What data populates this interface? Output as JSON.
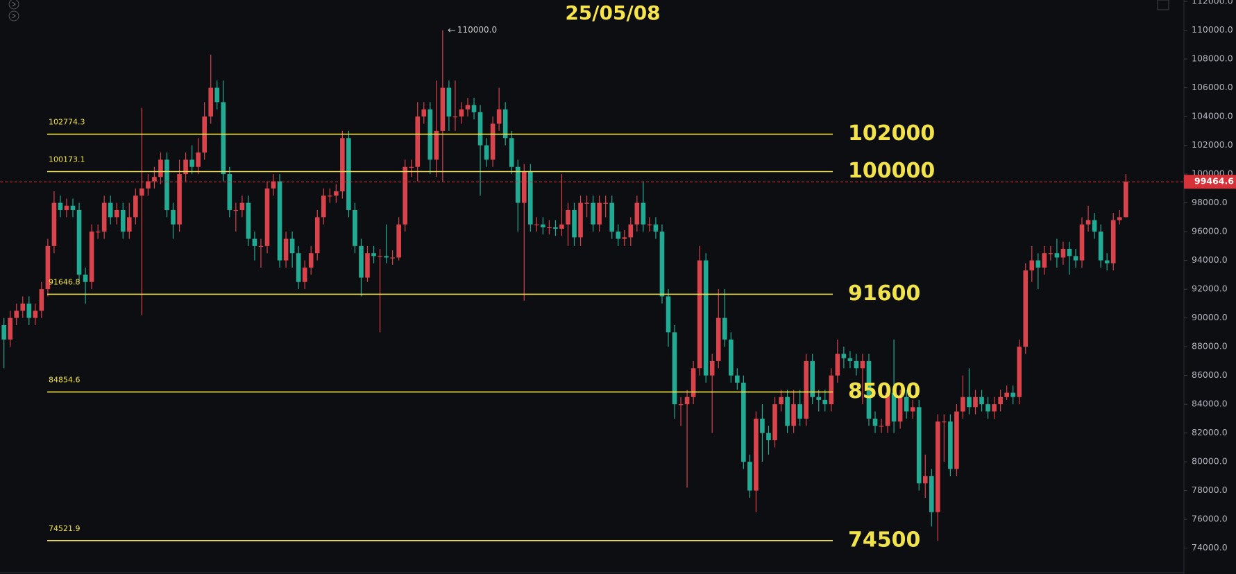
{
  "chart_data": {
    "type": "candlestick",
    "title": "25/05/08",
    "up_color": "#d9434b",
    "down_color": "#22ab94",
    "level_color": "#f2e34a",
    "ylim": [
      72200,
      112100
    ],
    "yticks": [
      {
        "value": 74000,
        "label": "74000.0"
      },
      {
        "value": 76000,
        "label": "76000.0"
      },
      {
        "value": 78000,
        "label": "78000.0"
      },
      {
        "value": 80000,
        "label": "80000.0"
      },
      {
        "value": 82000,
        "label": "82000.0"
      },
      {
        "value": 84000,
        "label": "84000.0"
      },
      {
        "value": 86000,
        "label": "86000.0"
      },
      {
        "value": 88000,
        "label": "88000.0"
      },
      {
        "value": 90000,
        "label": "90000.0"
      },
      {
        "value": 92000,
        "label": "92000.0"
      },
      {
        "value": 94000,
        "label": "94000.0"
      },
      {
        "value": 96000,
        "label": "96000.0"
      },
      {
        "value": 98000,
        "label": "98000.0"
      },
      {
        "value": 100000,
        "label": "100000.0"
      },
      {
        "value": 102000,
        "label": "102000.0"
      },
      {
        "value": 104000,
        "label": "104000.0"
      },
      {
        "value": 106000,
        "label": "106000.0"
      },
      {
        "value": 108000,
        "label": "108000.0"
      },
      {
        "value": 110000,
        "label": "110000.0"
      },
      {
        "value": 112000,
        "label": "112000.0"
      }
    ],
    "levels": [
      {
        "value": 102774.3,
        "target": 102000
      },
      {
        "value": 100173.1,
        "target": 100000
      },
      {
        "value": 91646.8,
        "target": 91600
      },
      {
        "value": 84854.6,
        "target": 85000
      },
      {
        "value": 74521.9,
        "target": 74500
      }
    ],
    "last_price": 99464.6,
    "high_marker": {
      "value": 110000,
      "label": "110000.0"
    },
    "open": [
      89500,
      88500,
      90000,
      90500,
      91000,
      90000,
      90500,
      92000,
      95000,
      98000,
      97500,
      97800,
      97500,
      93000,
      92500,
      96000,
      96000,
      98000,
      97000,
      97500,
      96000,
      97000,
      98500,
      99000,
      99500,
      99800,
      101000,
      97500,
      96500,
      100000,
      101000,
      100500,
      101500,
      104000,
      106000,
      105000,
      100000,
      97500,
      97500,
      98000,
      95500,
      95000,
      95000,
      99000,
      99500,
      94000,
      95500,
      94500,
      92500,
      93500,
      94500,
      97000,
      98500,
      98500,
      98800,
      102500,
      97500,
      95000,
      92800,
      94500,
      94300,
      94300,
      94200,
      94200,
      96500,
      100500,
      100500,
      104000,
      104500,
      101000,
      103000,
      106000,
      104000,
      104000,
      104500,
      104800,
      104300,
      102000,
      101000,
      103500,
      104500,
      102500,
      100500,
      98000,
      100200,
      96500,
      96500,
      96300,
      96300,
      96200,
      96500,
      97500,
      95600,
      98000,
      98000,
      96500,
      98000,
      98000,
      96000,
      95500,
      95600,
      96500,
      98000,
      96500,
      96500,
      96000,
      91500,
      89000,
      84000,
      84000,
      84500,
      86500,
      94000,
      86000,
      87000,
      90000,
      88500,
      86000,
      85500,
      80000,
      78000,
      83000,
      82000,
      81500,
      84000,
      84500,
      82500,
      84000,
      83000,
      87000,
      84500,
      84300,
      84000,
      86000,
      87500,
      87200,
      87000,
      86500,
      87000,
      83000,
      82500,
      82500,
      84800,
      82800,
      84500,
      83500,
      83800,
      78500,
      79000,
      76500,
      82800,
      82800,
      79500,
      83500,
      84500,
      83800,
      84500,
      84000,
      83500,
      84000,
      84500,
      84800,
      84500,
      88000,
      93300,
      94000,
      93500,
      94500,
      94500,
      94200,
      94800,
      94300,
      94000,
      96500,
      96800,
      96000,
      94000,
      93800,
      96800,
      97000
    ],
    "high": [
      90000,
      90500,
      91000,
      91500,
      91500,
      91000,
      92500,
      95500,
      98800,
      98500,
      98300,
      98300,
      98000,
      93500,
      96500,
      96500,
      98500,
      98500,
      98000,
      98000,
      98000,
      99000,
      104600,
      100000,
      100500,
      101500,
      101500,
      98000,
      101000,
      101500,
      102000,
      102500,
      105000,
      108300,
      106500,
      106500,
      100500,
      98000,
      98500,
      98500,
      96000,
      95500,
      99500,
      100000,
      100000,
      96000,
      96000,
      95000,
      94000,
      95000,
      97500,
      99000,
      99000,
      99300,
      103000,
      103000,
      98000,
      95500,
      95000,
      95000,
      94800,
      96500,
      94700,
      97000,
      101000,
      101000,
      105000,
      105000,
      105000,
      106500,
      110000,
      106500,
      106500,
      105000,
      105300,
      105300,
      104800,
      102500,
      104000,
      106000,
      105000,
      103000,
      101000,
      100700,
      100700,
      97000,
      97000,
      96800,
      96800,
      100000,
      98000,
      98000,
      98500,
      98500,
      98500,
      98500,
      98500,
      98500,
      96500,
      96100,
      97000,
      98500,
      99500,
      97000,
      97000,
      96500,
      92000,
      89500,
      84500,
      85000,
      87000,
      95000,
      94500,
      87500,
      92000,
      92000,
      89000,
      86500,
      86000,
      80500,
      83500,
      84000,
      82500,
      84500,
      85000,
      85000,
      85000,
      85000,
      87500,
      87500,
      85000,
      85000,
      86500,
      88500,
      88000,
      87700,
      87500,
      87500,
      87500,
      83500,
      83000,
      85300,
      88500,
      85000,
      85000,
      84300,
      84300,
      80500,
      79500,
      83300,
      83300,
      83300,
      84000,
      86000,
      86500,
      85000,
      85000,
      84500,
      84500,
      85000,
      85300,
      85300,
      88500,
      93800,
      95000,
      94500,
      95000,
      95000,
      95500,
      95300,
      95300,
      94800,
      97000,
      97800,
      97300,
      96500,
      94500,
      97300,
      97500,
      100000
    ],
    "low": [
      86500,
      88000,
      89500,
      90000,
      89500,
      89500,
      90000,
      91500,
      94500,
      97000,
      97000,
      97000,
      92500,
      91000,
      92000,
      95500,
      95500,
      96500,
      96500,
      95500,
      95500,
      96500,
      90200,
      98500,
      99000,
      99300,
      97000,
      95500,
      96000,
      99500,
      100000,
      100000,
      101000,
      103500,
      104500,
      99500,
      97000,
      96000,
      97000,
      95000,
      94000,
      93500,
      94500,
      98500,
      93500,
      93500,
      93500,
      92000,
      92000,
      93000,
      94000,
      96500,
      98000,
      98000,
      98300,
      97000,
      94500,
      91500,
      92500,
      93800,
      89000,
      93800,
      93700,
      94000,
      96000,
      99800,
      99500,
      103500,
      100000,
      99800,
      99500,
      103000,
      103000,
      103500,
      104000,
      103800,
      98500,
      100500,
      100500,
      103000,
      102000,
      100000,
      96000,
      91200,
      96000,
      96000,
      95800,
      95800,
      95700,
      95700,
      95000,
      95000,
      95000,
      97000,
      96000,
      96000,
      97000,
      95500,
      95000,
      95000,
      95000,
      96000,
      96000,
      96000,
      95500,
      91000,
      88000,
      83000,
      82500,
      78200,
      84000,
      86000,
      85500,
      82000,
      86500,
      88000,
      85500,
      85000,
      79500,
      77500,
      76500,
      80000,
      80500,
      81000,
      83500,
      82000,
      82000,
      82500,
      82500,
      84000,
      83500,
      83500,
      83500,
      85500,
      86500,
      86500,
      86000,
      84000,
      82500,
      82000,
      82000,
      82000,
      82000,
      82300,
      83000,
      83000,
      78000,
      77500,
      75500,
      74500,
      80000,
      79000,
      79000,
      83000,
      83300,
      83300,
      83500,
      83000,
      83000,
      83500,
      84300,
      84000,
      84000,
      87500,
      92500,
      92000,
      93000,
      94000,
      93500,
      93700,
      93000,
      93500,
      93500,
      96000,
      95500,
      93500,
      93300,
      93300,
      96500,
      97000
    ],
    "close": [
      88500,
      90000,
      90500,
      91000,
      90000,
      90500,
      92000,
      95000,
      98000,
      97500,
      97800,
      97500,
      93000,
      92500,
      96000,
      96000,
      98000,
      97000,
      97500,
      96000,
      97000,
      98500,
      99000,
      99500,
      99800,
      101000,
      97500,
      96500,
      100000,
      101000,
      100500,
      101500,
      104000,
      106000,
      105000,
      100000,
      97500,
      97500,
      98000,
      95500,
      95000,
      95000,
      99000,
      99500,
      94000,
      95500,
      94500,
      92500,
      93500,
      94500,
      97000,
      98500,
      98500,
      98800,
      102500,
      97500,
      95000,
      92800,
      94500,
      94300,
      94300,
      94200,
      94200,
      96500,
      100500,
      100500,
      104000,
      104500,
      101000,
      103000,
      106000,
      104000,
      104000,
      104500,
      104800,
      104300,
      102000,
      101000,
      103500,
      104500,
      102500,
      100500,
      98000,
      100200,
      96500,
      96500,
      96300,
      96300,
      96200,
      96500,
      97500,
      95600,
      98000,
      98000,
      96500,
      98000,
      98000,
      96000,
      95500,
      95600,
      96500,
      98000,
      96500,
      96500,
      96000,
      91500,
      89000,
      84000,
      84000,
      84500,
      86500,
      94000,
      86000,
      87000,
      90000,
      88500,
      86000,
      85500,
      80000,
      78000,
      83000,
      82000,
      81500,
      84000,
      84500,
      82500,
      84000,
      83000,
      87000,
      84500,
      84300,
      84000,
      86000,
      87500,
      87200,
      87000,
      86500,
      87000,
      83000,
      82500,
      82500,
      84800,
      82800,
      84500,
      83500,
      83800,
      78500,
      79000,
      76500,
      82800,
      82800,
      79500,
      83500,
      84500,
      83800,
      84500,
      84000,
      83500,
      84000,
      84500,
      84800,
      84500,
      88000,
      93300,
      94000,
      93500,
      94500,
      94500,
      94200,
      94800,
      94300,
      94000,
      96500,
      96800,
      96000,
      94000,
      93800,
      96800,
      97000,
      99464.6
    ]
  }
}
